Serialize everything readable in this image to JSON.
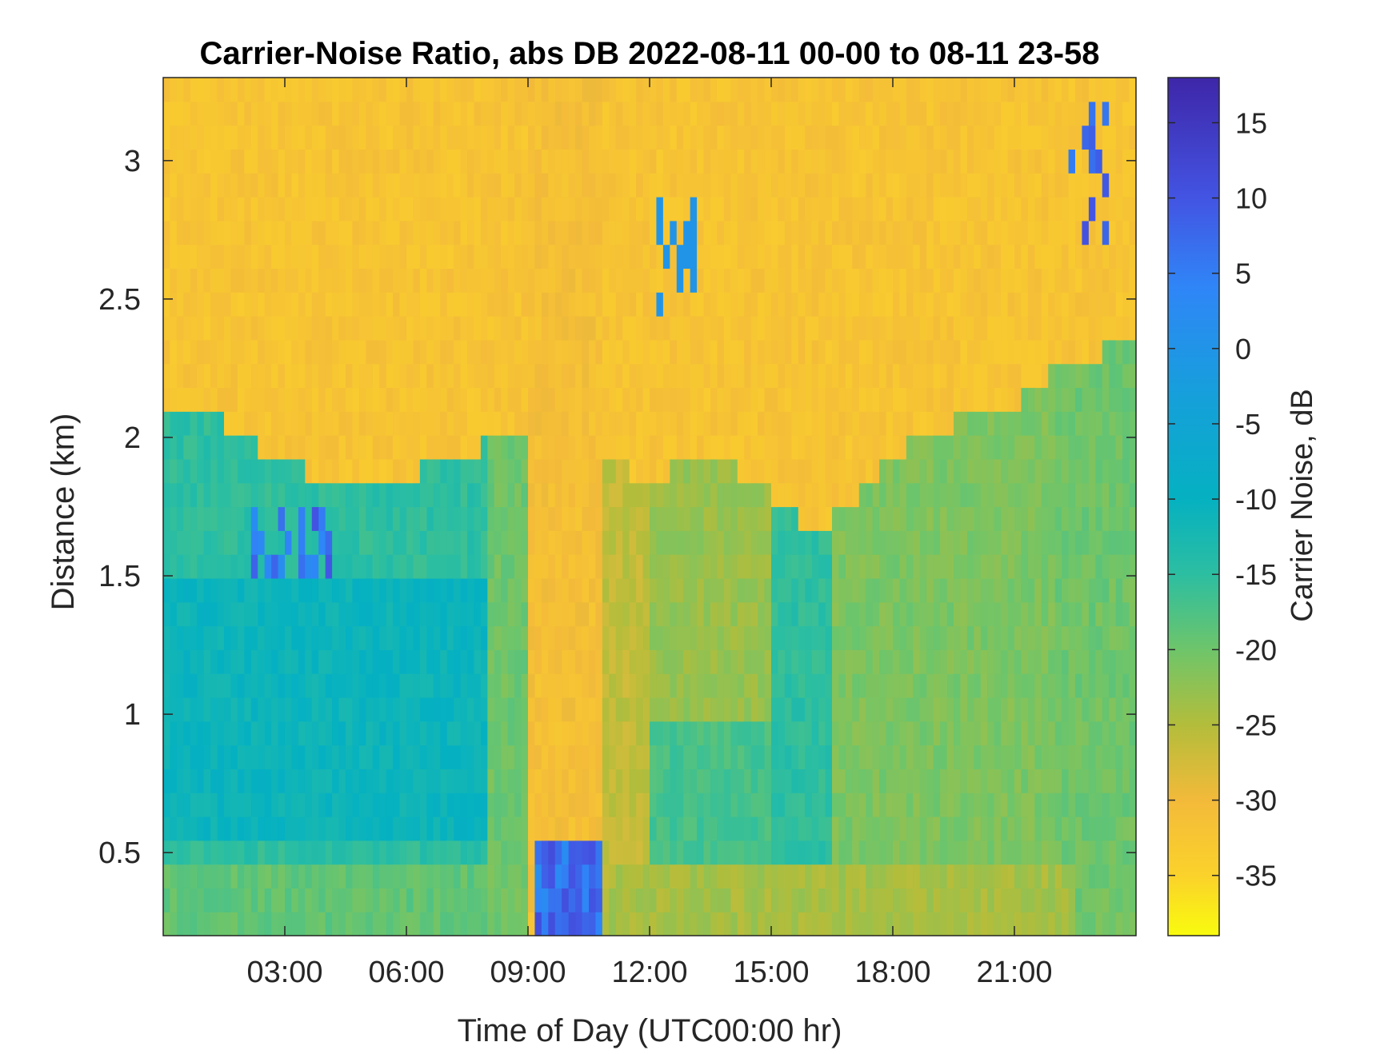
{
  "chart_data": {
    "type": "heatmap",
    "title": "Carrier-Noise Ratio, abs DB 2022-08-11 00-00 to 08-11 23-58",
    "xlabel": "Time of Day (UTC00:00 hr)",
    "ylabel": "Distance (km)",
    "colorbar_label": "Carrier Noise, dB",
    "xlim": [
      0,
      24
    ],
    "ylim": [
      0.2,
      3.3
    ],
    "clim": [
      -39,
      18
    ],
    "x_ticks": [
      3,
      6,
      9,
      12,
      15,
      18,
      21
    ],
    "x_tick_labels": [
      "03:00",
      "06:00",
      "09:00",
      "12:00",
      "15:00",
      "18:00",
      "21:00"
    ],
    "y_ticks": [
      0.5,
      1,
      1.5,
      2,
      2.5,
      3
    ],
    "y_tick_labels": [
      "0.5",
      "1",
      "1.5",
      "2",
      "2.5",
      "3"
    ],
    "colorbar_ticks": [
      15,
      10,
      5,
      0,
      -5,
      -10,
      -15,
      -20,
      -25,
      -30,
      -35
    ],
    "colorbar_tick_labels": [
      "15",
      "10",
      "5",
      "0",
      "-5",
      "-10",
      "-15",
      "-20",
      "-25",
      "-30",
      "-35"
    ],
    "colormap": "parula-reversed",
    "colormap_stops": [
      {
        "value": 18,
        "color": "#3e26a8"
      },
      {
        "value": 10,
        "color": "#4354e3"
      },
      {
        "value": 4,
        "color": "#2f86f7"
      },
      {
        "value": -3,
        "color": "#169fdb"
      },
      {
        "value": -10,
        "color": "#05b1c1"
      },
      {
        "value": -15,
        "color": "#2cbea1"
      },
      {
        "value": -20,
        "color": "#6ec56a"
      },
      {
        "value": -25,
        "color": "#b3bd3b"
      },
      {
        "value": -30,
        "color": "#f3ba3a"
      },
      {
        "value": -35,
        "color": "#fbd22b"
      },
      {
        "value": -39,
        "color": "#f9fb0e"
      }
    ],
    "grid": false,
    "legend": "colorbar-right"
  }
}
